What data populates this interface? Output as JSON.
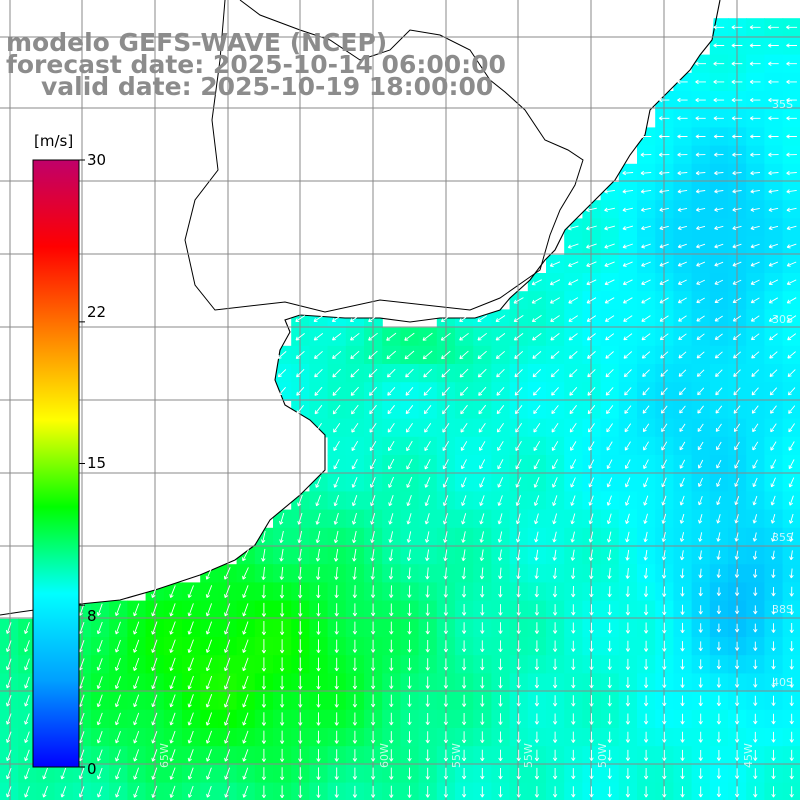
{
  "title": {
    "line1": "modelo GEFS-WAVE (NCEP)",
    "line2": "forecast date: 2025-10-14 06:00:00",
    "line3": "valid date: 2025-10-19 18:00:00"
  },
  "colorbar": {
    "unit": "[m/s]",
    "min": 0,
    "max": 30,
    "ticks": [
      {
        "label": "30",
        "value": 30
      },
      {
        "label": "22",
        "value": 22
      },
      {
        "label": "15",
        "value": 15
      },
      {
        "label": "8",
        "value": 8
      },
      {
        "label": "0",
        "value": 0
      }
    ],
    "stops": [
      "#0000ff",
      "#00a0ff",
      "#00ffff",
      "#00ff00",
      "#ffff00",
      "#ff8000",
      "#ff0000",
      "#c0006a"
    ]
  },
  "map": {
    "variable": "wind speed",
    "lat_labels": [
      "35S",
      "30S",
      "35S",
      "38S",
      "40S"
    ],
    "lon_labels": [
      "65W",
      "60W",
      "55W",
      "55W",
      "50W",
      "45W"
    ],
    "colors": {
      "land": "#ffffff",
      "coast": "#000000",
      "grid": "#888888",
      "arrows": "#ffffff",
      "title": "#8c8c8c"
    }
  }
}
